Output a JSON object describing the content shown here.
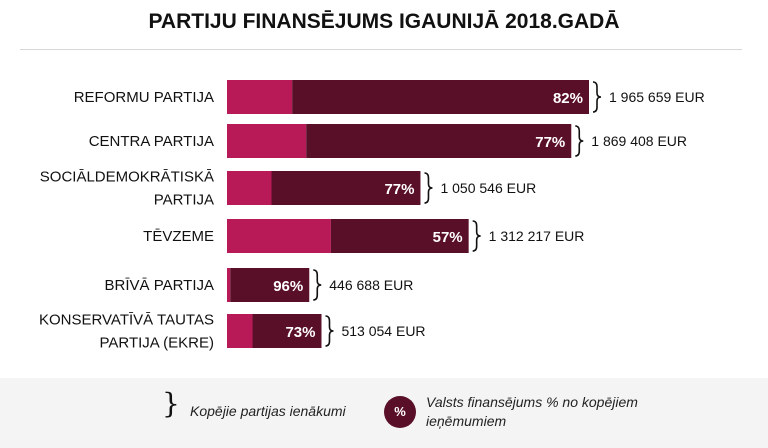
{
  "title": "PARTIJU FINANSĒJUMS IGAUNIJĀ 2018.GADĀ",
  "colors": {
    "state_share": "#5a0f28",
    "other": "#b81a57",
    "rule": "#d6d6d6",
    "legend_bg": "#f4f4f4"
  },
  "legend": {
    "income_label": "Kopējie partijas ienākumi",
    "state_label": "Valsts finansējums % no kopējiem ieņēmumiem",
    "percent_symbol": "%"
  },
  "chart_data": {
    "type": "bar",
    "orientation": "horizontal",
    "stacked": true,
    "categories": [
      [
        "REFORMU PARTIJA"
      ],
      [
        "CENTRA PARTIJA"
      ],
      [
        "SOCIĀLDEMOKRĀTISKĀ",
        "PARTIJA"
      ],
      [
        "TĒVZEME"
      ],
      [
        "BRĪVĀ PARTIJA"
      ],
      [
        "KONSERVATĪVĀ TAUTAS",
        "PARTIJA (EKRE)"
      ]
    ],
    "total_income_eur": [
      1965659,
      1869408,
      1050546,
      1312217,
      446688,
      513054
    ],
    "total_income_labels": [
      "1 965 659 EUR",
      "1 869 408 EUR",
      "1 050 546 EUR",
      "1 312 217 EUR",
      "446 688 EUR",
      "513 054 EUR"
    ],
    "state_share_pct": [
      82,
      77,
      77,
      57,
      96,
      73
    ],
    "state_share_labels": [
      "82%",
      "77%",
      "77%",
      "57%",
      "96%",
      "73%"
    ],
    "grid": false
  }
}
